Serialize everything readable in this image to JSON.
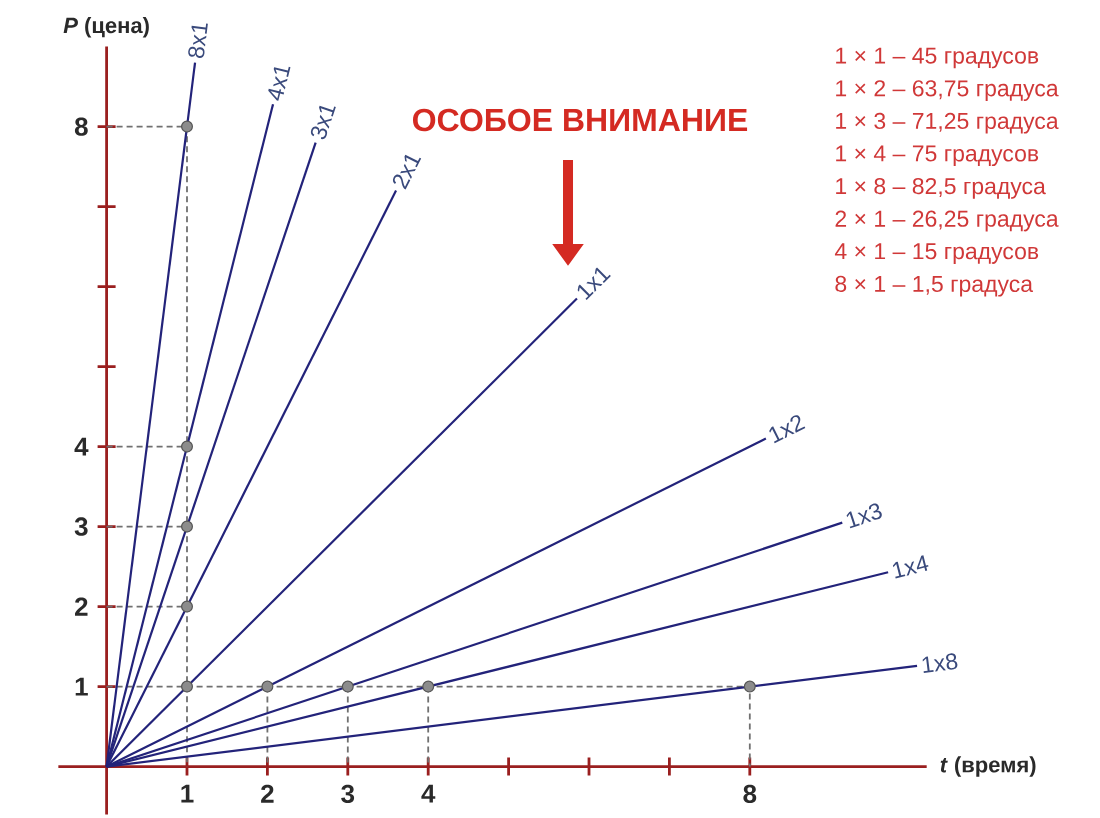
{
  "chart_data": {
    "type": "line",
    "xlabel": "*t* (время)",
    "ylabel": "*P* (цена)",
    "xlim": [
      -0.6,
      10.2
    ],
    "ylim": [
      -0.6,
      9.0
    ],
    "xticks": [
      1,
      2,
      3,
      4,
      {
        "value": 5,
        "label": null
      },
      {
        "value": 6,
        "label": null
      },
      {
        "value": 7,
        "label": null
      },
      8
    ],
    "yticks": [
      1,
      2,
      3,
      4,
      {
        "value": 5,
        "label": null
      },
      {
        "value": 6,
        "label": null
      },
      {
        "value": 7,
        "label": null
      },
      8
    ],
    "series": [
      {
        "line_style": "dashed",
        "color": "#707070",
        "x": [
          0,
          1,
          1
        ],
        "values": [
          8,
          8,
          0
        ]
      },
      {
        "line_style": "dashed",
        "color": "#707070",
        "x": [
          0,
          8,
          8
        ],
        "values": [
          1,
          1,
          0
        ]
      },
      {
        "line_style": "dashed",
        "color": "#707070",
        "x": [
          0,
          1
        ],
        "values": [
          4,
          4
        ]
      },
      {
        "line_style": "dashed",
        "color": "#707070",
        "x": [
          0,
          1
        ],
        "values": [
          3,
          3
        ]
      },
      {
        "line_style": "dashed",
        "color": "#707070",
        "x": [
          0,
          1
        ],
        "values": [
          2,
          2
        ]
      },
      {
        "line_style": "dashed",
        "color": "#707070",
        "x": [
          2,
          2
        ],
        "values": [
          1,
          0
        ]
      },
      {
        "line_style": "dashed",
        "color": "#707070",
        "x": [
          3,
          3
        ],
        "values": [
          1,
          0
        ]
      },
      {
        "line_style": "dashed",
        "color": "#707070",
        "x": [
          4,
          4
        ],
        "values": [
          1,
          0
        ]
      },
      {
        "name": "8x1",
        "color": "#23237a",
        "x": [
          0,
          1.1
        ],
        "values": [
          0,
          8.8
        ]
      },
      {
        "name": "4x1",
        "color": "#23237a",
        "x": [
          0,
          2.07
        ],
        "values": [
          0,
          8.28
        ]
      },
      {
        "name": "3x1",
        "color": "#23237a",
        "x": [
          0,
          2.6
        ],
        "values": [
          0,
          7.8
        ]
      },
      {
        "name": "2x1",
        "color": "#23237a",
        "x": [
          0,
          3.6
        ],
        "values": [
          0,
          7.2
        ]
      },
      {
        "name": "1x1",
        "color": "#23237a",
        "x": [
          0,
          5.85
        ],
        "values": [
          0,
          5.85
        ]
      },
      {
        "name": "1x2",
        "color": "#23237a",
        "x": [
          0,
          8.2
        ],
        "values": [
          0,
          4.1
        ]
      },
      {
        "name": "1x3",
        "color": "#23237a",
        "x": [
          0,
          9.15
        ],
        "values": [
          0,
          3.05
        ]
      },
      {
        "name": "1x4",
        "color": "#23237a",
        "x": [
          0,
          9.72
        ],
        "values": [
          0,
          2.43
        ]
      },
      {
        "name": "1x8",
        "color": "#23237a",
        "x": [
          0,
          10.08
        ],
        "values": [
          0,
          1.26
        ]
      },
      {
        "type": "scatter",
        "marker": "circle",
        "color": "#8c8c8c",
        "x": [
          1,
          1,
          1,
          1,
          1,
          2,
          3,
          4,
          8
        ],
        "values": [
          8,
          4,
          3,
          2,
          1,
          1,
          1,
          1,
          1
        ]
      }
    ],
    "annotations": [
      "ОСОБОЕ ВНИМАНИЕ",
      "1 × 1 – 45 градусов",
      "1 × 2 – 63,75 градуса",
      "1 × 3 – 71,25 градуса",
      "1 × 4 – 75 градусов",
      "1 × 8 – 82,5 градуса",
      "2 × 1 – 26,25 градуса",
      "4 × 1 – 15 градусов",
      "8 × 1 – 1,5 градуса"
    ]
  }
}
